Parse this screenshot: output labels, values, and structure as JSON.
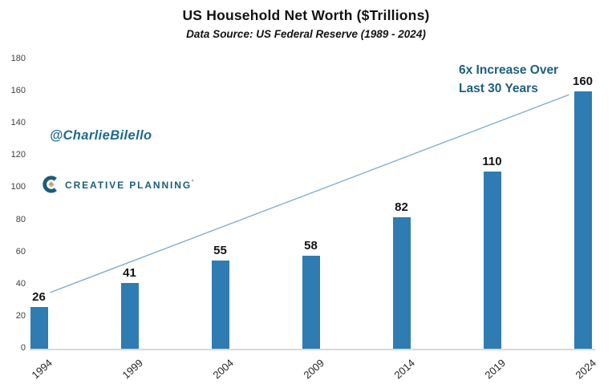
{
  "header": {
    "title": "US Household Net Worth ($Trillions)",
    "subtitle": "Data Source: US Federal Reserve (1989 - 2024)"
  },
  "watermark": "@CharlieBilello",
  "logo": {
    "text": "CREATIVE PLANNING",
    "tm": "'"
  },
  "annotation": {
    "line1": "6x Increase Over",
    "line2": "Last 30 Years"
  },
  "chart_data": {
    "type": "bar",
    "categories": [
      "1994",
      "1999",
      "2004",
      "2009",
      "2014",
      "2019",
      "2024"
    ],
    "values": [
      26,
      41,
      55,
      58,
      82,
      110,
      160
    ],
    "title": "US Household Net Worth ($Trillions)",
    "subtitle": "Data Source: US Federal Reserve (1989 - 2024)",
    "xlabel": "",
    "ylabel": "",
    "ylim": [
      0,
      180
    ],
    "ytick_step": 20,
    "grid": false,
    "legend": false,
    "data_labels": true,
    "annotations": [
      "6x Increase Over Last 30 Years"
    ],
    "trend_line": {
      "from_category": "1994",
      "to_category": "2024",
      "style": "thin-solid"
    }
  },
  "colors": {
    "bar": "#2e7cb1",
    "trend_line": "#7aaacd",
    "annotation_text": "#1d5f80",
    "watermark_text": "#1e6a8e",
    "logo_teal": "#1a5c7c",
    "logo_gold": "#c9a566",
    "axis_line": "#d9d9d9",
    "tick_text": "#404040",
    "title_text": "#121212"
  }
}
